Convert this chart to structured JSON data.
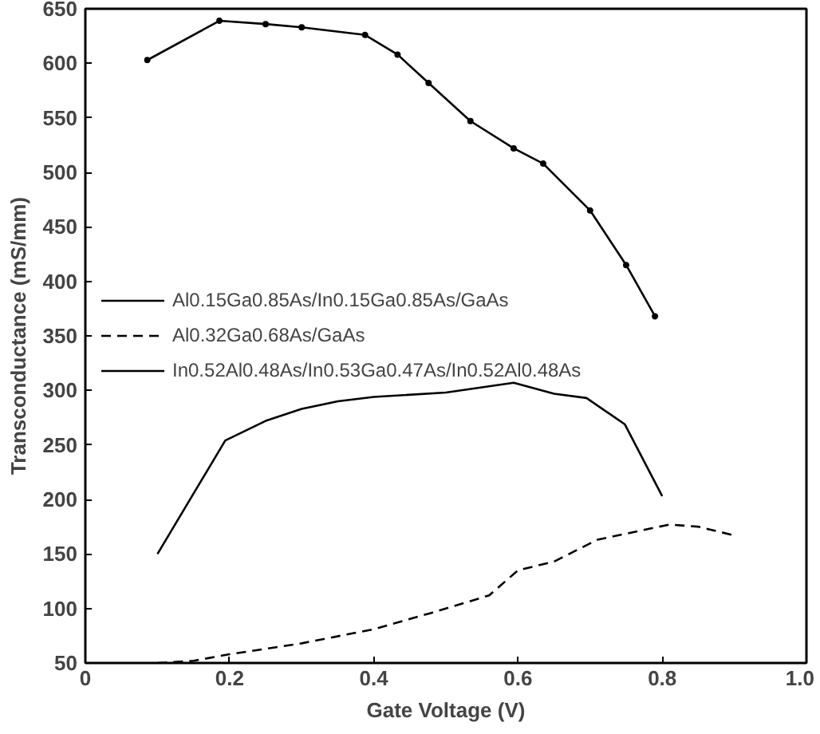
{
  "chart_data": {
    "type": "line",
    "xlabel": "Gate Voltage (V)",
    "ylabel": "Transconductance (mS/mm)",
    "xlim": [
      0,
      1.0
    ],
    "ylim": [
      50,
      650
    ],
    "xticks": [
      0,
      0.2,
      0.4,
      0.6,
      0.8,
      {
        "value": 1.0,
        "label": "1.0"
      }
    ],
    "yticks": [
      50,
      100,
      150,
      200,
      250,
      300,
      350,
      400,
      450,
      500,
      550,
      600,
      650
    ],
    "grid": false,
    "legend": "left",
    "series": [
      {
        "name": "Al0.15Ga0.85As/In0.15Ga0.85As/GaAs",
        "color": "#000000",
        "line_style": "solid",
        "marker": "none",
        "x": [
          0.1,
          0.194,
          0.25,
          0.3,
          0.35,
          0.4,
          0.5,
          0.594,
          0.65,
          0.695,
          0.748,
          0.8
        ],
        "values": [
          150,
          254,
          272,
          283,
          290,
          294,
          298,
          307,
          297,
          293,
          269,
          203
        ]
      },
      {
        "name": "Al0.32Ga0.68As/GaAs",
        "color": "#000000",
        "line_style": "dashed",
        "marker": "none",
        "x": [
          0.1,
          0.15,
          0.2,
          0.3,
          0.4,
          0.48,
          0.56,
          0.6,
          0.65,
          0.71,
          0.76,
          0.81,
          0.85,
          0.9
        ],
        "values": [
          50,
          52,
          58,
          68,
          81,
          96,
          112,
          135,
          143,
          163,
          170,
          177,
          175,
          167
        ]
      },
      {
        "name": "In0.52Al0.48As/In0.53Ga0.47As/In0.52Al0.48As",
        "color": "#000000",
        "line_style": "solid",
        "marker": "circle",
        "x": [
          0.086,
          0.186,
          0.25,
          0.3,
          0.388,
          0.433,
          0.476,
          0.534,
          0.594,
          0.635,
          0.7,
          0.75,
          0.79
        ],
        "values": [
          603,
          639,
          636,
          633,
          626,
          608,
          582,
          547,
          522,
          508,
          465,
          415,
          368
        ]
      }
    ]
  }
}
